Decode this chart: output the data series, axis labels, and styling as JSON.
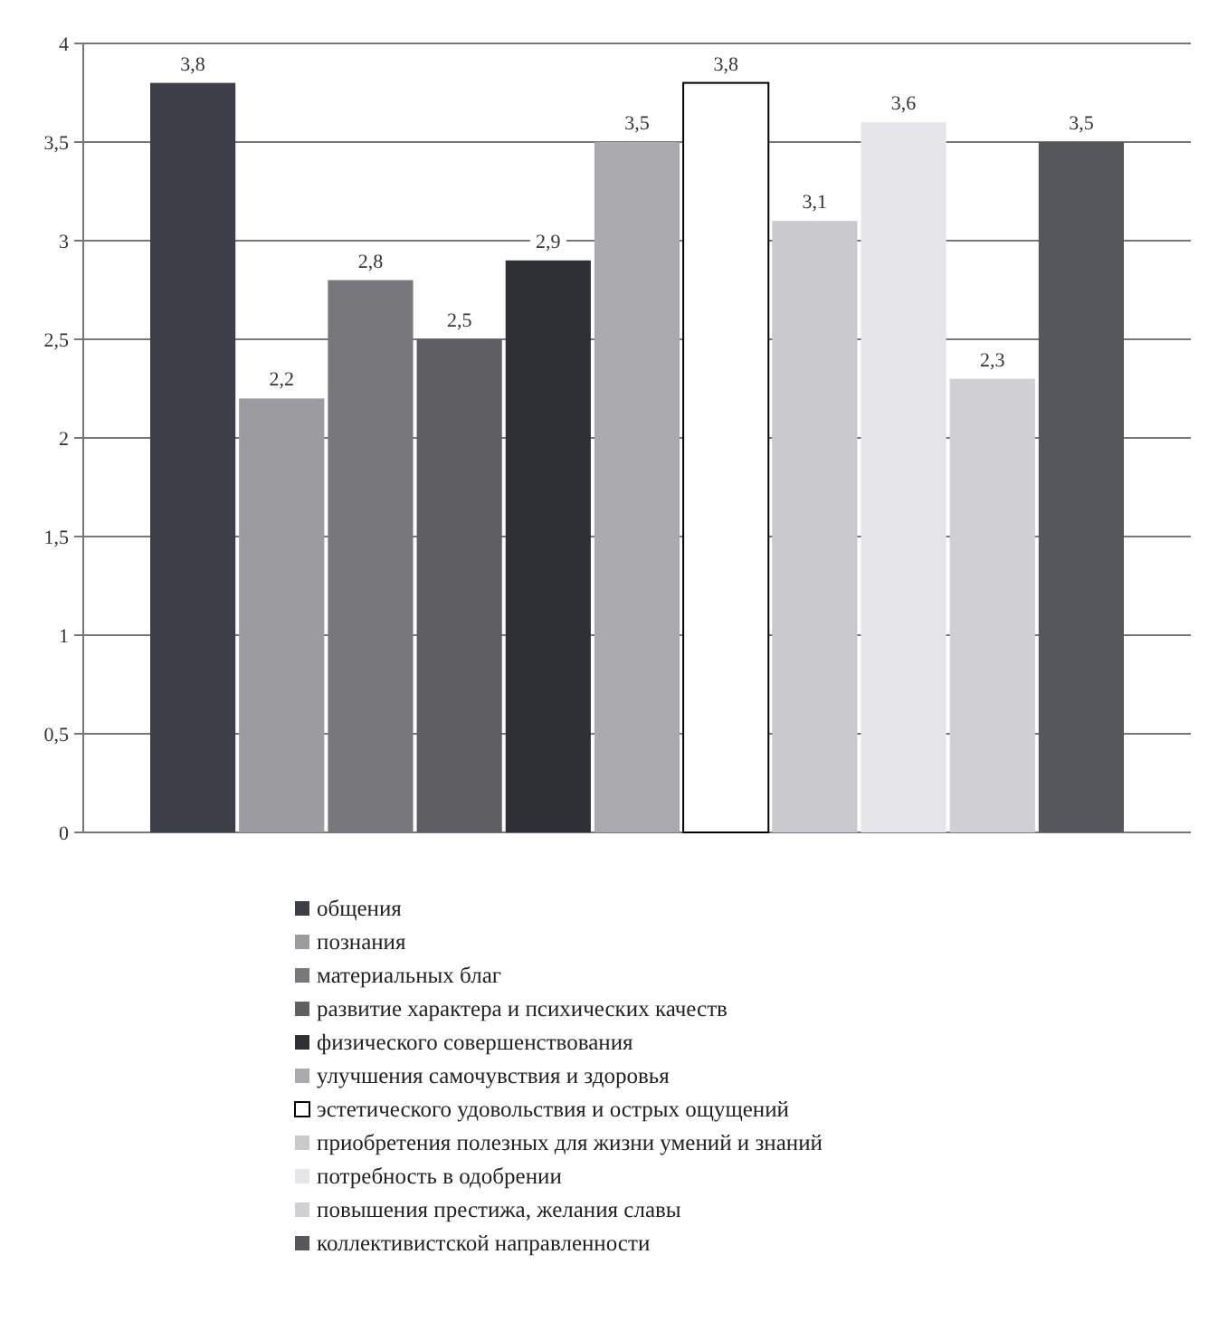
{
  "chart_data": {
    "type": "bar",
    "categories": [
      null
    ],
    "series": [
      {
        "name": "общения",
        "color": "#3d3f48",
        "values": [
          3.8
        ],
        "value_labels": [
          "3,8"
        ]
      },
      {
        "name": "познания",
        "color": "#9c9ca0",
        "values": [
          2.2
        ],
        "value_labels": [
          "2,2"
        ]
      },
      {
        "name": "материальных благ",
        "color": "#77777c",
        "values": [
          2.8
        ],
        "value_labels": [
          "2,8"
        ]
      },
      {
        "name": "развитие характера и психических качеств",
        "color": "#5e5e63",
        "values": [
          2.5
        ],
        "value_labels": [
          "2,5"
        ]
      },
      {
        "name": "физического совершенствования",
        "color": "#2f3036",
        "values": [
          2.9
        ],
        "value_labels": [
          "2,9"
        ]
      },
      {
        "name": "улучшения самочувствия и здоровья",
        "color": "#a9a9ae",
        "values": [
          3.5
        ],
        "value_labels": [
          "3,5"
        ]
      },
      {
        "name": "эстетического удовольствия и острых ощущений",
        "color": "#ffffff",
        "values": [
          3.8
        ],
        "value_labels": [
          "3,8"
        ]
      },
      {
        "name": "приобретения полезных для жизни умений и знаний",
        "color": "#c9c9ce",
        "values": [
          3.1
        ],
        "value_labels": [
          "3,1"
        ]
      },
      {
        "name": "потребность в одобрении",
        "color": "#e6e6ea",
        "values": [
          3.6
        ],
        "value_labels": [
          "3,6"
        ]
      },
      {
        "name": "повышения престижа, желания славы",
        "color": "#cfcfd4",
        "values": [
          2.3
        ],
        "value_labels": [
          "2,3"
        ]
      },
      {
        "name": "коллективистской направленности",
        "color": "#56575c",
        "values": [
          3.5
        ],
        "value_labels": [
          "3,5"
        ]
      }
    ],
    "ylim": [
      0,
      4
    ],
    "yticks": [
      0,
      {
        "value": 0.5,
        "label": "0,5"
      },
      1,
      {
        "value": 1.5,
        "label": "1,5"
      },
      2,
      {
        "value": 2.5,
        "label": "2,5"
      },
      3,
      {
        "value": 3.5,
        "label": "3,5"
      },
      4
    ],
    "grid": "y",
    "legend": "bottom"
  }
}
